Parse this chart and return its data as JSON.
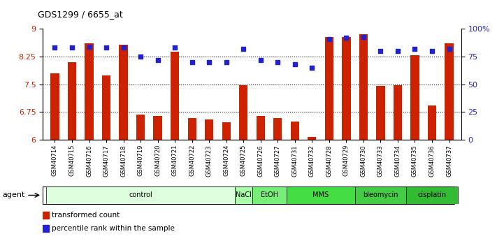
{
  "title": "GDS1299 / 6655_at",
  "samples": [
    "GSM40714",
    "GSM40715",
    "GSM40716",
    "GSM40717",
    "GSM40718",
    "GSM40719",
    "GSM40720",
    "GSM40721",
    "GSM40722",
    "GSM40723",
    "GSM40724",
    "GSM40725",
    "GSM40726",
    "GSM40727",
    "GSM40731",
    "GSM40732",
    "GSM40728",
    "GSM40729",
    "GSM40730",
    "GSM40733",
    "GSM40734",
    "GSM40735",
    "GSM40736",
    "GSM40737"
  ],
  "bar_values": [
    7.8,
    8.1,
    8.62,
    7.75,
    8.58,
    6.68,
    6.65,
    8.38,
    6.58,
    6.55,
    6.48,
    7.48,
    6.65,
    6.58,
    6.5,
    6.08,
    8.78,
    8.78,
    8.85,
    7.45,
    7.48,
    8.28,
    6.92,
    8.62
  ],
  "dot_values": [
    83,
    83,
    84,
    83,
    83,
    75,
    72,
    83,
    70,
    70,
    70,
    82,
    72,
    70,
    68,
    65,
    91,
    92,
    93,
    80,
    80,
    82,
    80,
    82
  ],
  "ylim_left": [
    6,
    9
  ],
  "ylim_right": [
    0,
    100
  ],
  "yticks_left": [
    6,
    6.75,
    7.5,
    8.25,
    9
  ],
  "yticks_right": [
    0,
    25,
    50,
    75,
    100
  ],
  "ytick_labels_left": [
    "6",
    "6.75",
    "7.5",
    "8.25",
    "9"
  ],
  "ytick_labels_right": [
    "0",
    "25",
    "50",
    "75",
    "100%"
  ],
  "bar_color": "#cc2200",
  "dot_color": "#2222cc",
  "hline_values": [
    6.75,
    7.5,
    8.25
  ],
  "agent_groups": [
    {
      "label": "control",
      "start": 0,
      "end": 11,
      "color": "#ddffdd"
    },
    {
      "label": "NaCl",
      "start": 11,
      "end": 12,
      "color": "#aaffaa"
    },
    {
      "label": "EtOH",
      "start": 12,
      "end": 14,
      "color": "#77ee77"
    },
    {
      "label": "MMS",
      "start": 14,
      "end": 18,
      "color": "#44dd44"
    },
    {
      "label": "bleomycin",
      "start": 18,
      "end": 21,
      "color": "#44cc44"
    },
    {
      "label": "cisplatin",
      "start": 21,
      "end": 24,
      "color": "#33bb33"
    }
  ],
  "legend_items": [
    {
      "label": "transformed count",
      "color": "#cc2200"
    },
    {
      "label": "percentile rank within the sample",
      "color": "#2222cc"
    }
  ],
  "agent_label": "agent",
  "background_color": "#ffffff"
}
